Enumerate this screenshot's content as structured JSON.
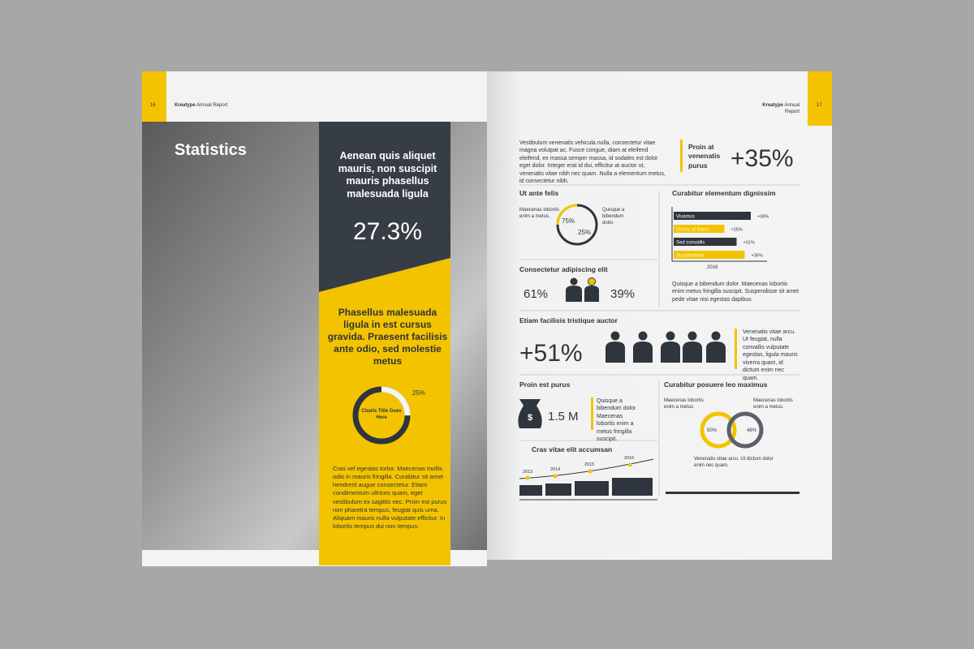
{
  "left_page": {
    "page_number": "16",
    "brand": "Kreatype",
    "header_text": "Annual Report",
    "title": "Statistics",
    "panel_heading": "Aenean quis aliquet mauris, non suscipit mauris phasellus malesuada ligula",
    "panel_stat": "27.3%",
    "yellow_heading": "Phasellus malesuada ligula in est cursus gravida. Praesent facilisis ante odio, sed molestie metus",
    "donut": {
      "center_label": "Charts Title Goes Here",
      "value": 25,
      "label": "25%"
    },
    "body": "Cras vel egestas tortor. Maecenas mollis odio in mauris fringilla. Curabitur sit amet hendrerit augue consectetur. Etiam condimentum ultrices quam, eget vestibulum ex sagittis nec. Proin est purus non pharetra tempus, feugiat quis urna. Aliquam mauris nulla vulputate efficitur. In lobortis tempus dui non tempus."
  },
  "right_page": {
    "page_number": "17",
    "brand": "Kreatype",
    "header_text": "Annual Report",
    "intro": "Vestibulum venenatis vehicula nulla, consectetur vitae magna volutpat ac. Fusce congue, diam at eleifend eleifend, ex massa semper massa, id sodales est dolor eget dolor. Integer erat id dui, efficitur at auctor ut, venenatis vitae nibh nec quam. Nulla a elementum metus, id consectetur nibh.",
    "highlight": {
      "label": "Proin at venenatis purus",
      "stat": "+35%"
    },
    "ring": {
      "title": "Ut ante felis",
      "left_text": "Maecenas lobortis enim a metus.",
      "right_text": "Quisque a bibendum dolor.",
      "values": [
        75,
        25
      ],
      "labels": [
        "75%",
        "25%"
      ]
    },
    "bars": {
      "title": "Curabitur elementum dignissim",
      "categories": [
        "Vivamus",
        "Donec at libero",
        "Sed convallis",
        "Suspendisse"
      ],
      "values": [
        38,
        25,
        31,
        35
      ],
      "value_labels": [
        "+38%",
        "+25%",
        "+31%",
        "+35%"
      ],
      "x_label": "2016",
      "caption": "Quisque a bibendum dolor. Maecenas lobortis enim metus fringilla suscipit. Suspendisse sit amet pede vitae nisi egestas dapibus."
    },
    "gender": {
      "title": "Consectetur adipiscing elit",
      "left": "61%",
      "right": "39%"
    },
    "people": {
      "title": "Etiam facilisis tristique auctor",
      "stat": "+51%",
      "text": "Venenatis vitae arcu. Ut feugiat, nulla convallis vulputate egestas, ligula mauris viverra quam, id dictum enim nec quam."
    },
    "money": {
      "title": "Proin est purus",
      "stat": "1.5 M",
      "text": "Quisque a bibendum dolor. Maecenas lobortis enim a metus fringilla suscipit."
    },
    "venn": {
      "title": "Curabitur posuere leo maximus",
      "left_text": "Maecenas lobortis enim a metus.",
      "right_text": "Maecenas lobortis enim a metus.",
      "left_label": "50%",
      "right_label": "48%",
      "bottom_text": "Venenatis vitae arcu. Ut dictum dolor enim nec quam."
    },
    "timeline": {
      "title": "Cras vitae elit accumsan",
      "years": [
        "2013",
        "2014",
        "2015",
        "2016"
      ]
    }
  }
}
